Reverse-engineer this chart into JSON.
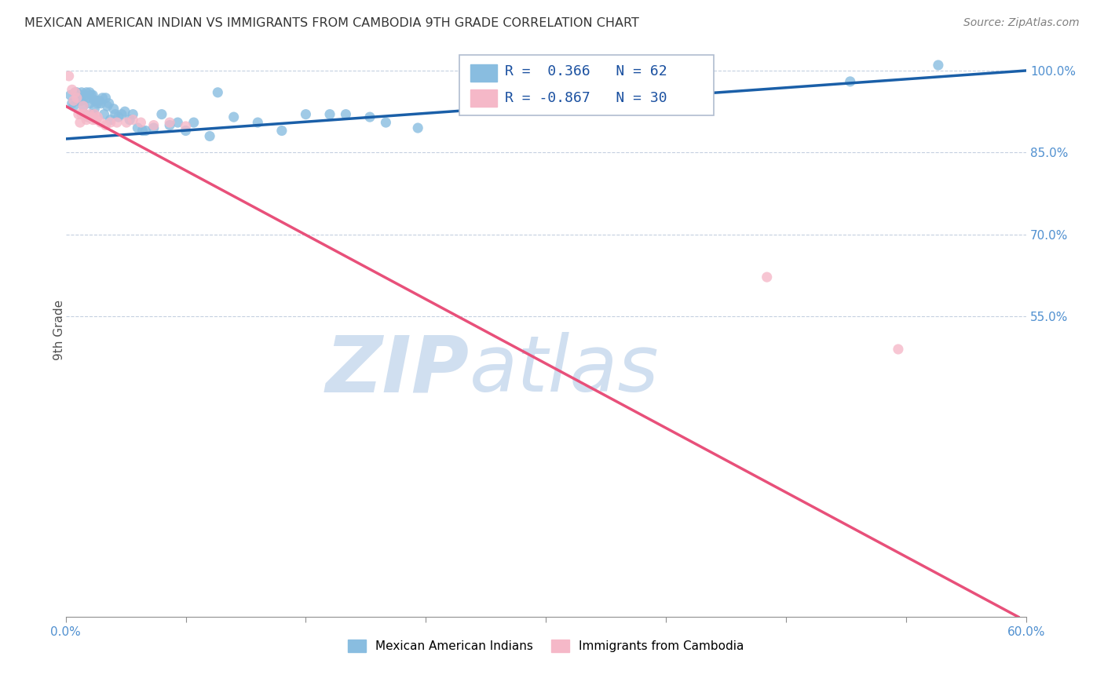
{
  "title": "MEXICAN AMERICAN INDIAN VS IMMIGRANTS FROM CAMBODIA 9TH GRADE CORRELATION CHART",
  "source": "Source: ZipAtlas.com",
  "ylabel": "9th Grade",
  "x_min": 0.0,
  "x_max": 0.6,
  "y_min": 0.0,
  "y_max": 1.05,
  "x_tick_positions": [
    0.0,
    0.075,
    0.15,
    0.225,
    0.3,
    0.375,
    0.45,
    0.525,
    0.6
  ],
  "x_tick_labels": [
    "0.0%",
    "",
    "",
    "",
    "",
    "",
    "",
    "",
    "60.0%"
  ],
  "y_ticks_right": [
    0.55,
    0.7,
    0.85,
    1.0
  ],
  "y_tick_labels_right": [
    "55.0%",
    "70.0%",
    "85.0%",
    "100.0%"
  ],
  "blue_R": 0.366,
  "blue_N": 62,
  "pink_R": -0.867,
  "pink_N": 30,
  "blue_color": "#89bde0",
  "pink_color": "#f5b8c8",
  "blue_line_color": "#1a5fa8",
  "pink_line_color": "#e8507a",
  "watermark_zip": "ZIP",
  "watermark_atlas": "atlas",
  "watermark_color": "#d0dff0",
  "blue_line_x0": 0.0,
  "blue_line_y0": 0.875,
  "blue_line_x1": 0.6,
  "blue_line_y1": 1.0,
  "pink_line_x0": 0.0,
  "pink_line_y0": 0.935,
  "pink_line_x1": 0.595,
  "pink_line_y1": 0.0,
  "blue_scatter_x": [
    0.003,
    0.004,
    0.005,
    0.006,
    0.007,
    0.008,
    0.009,
    0.01,
    0.01,
    0.011,
    0.012,
    0.012,
    0.013,
    0.014,
    0.014,
    0.015,
    0.015,
    0.016,
    0.017,
    0.017,
    0.018,
    0.018,
    0.019,
    0.02,
    0.021,
    0.022,
    0.023,
    0.024,
    0.025,
    0.026,
    0.027,
    0.028,
    0.03,
    0.031,
    0.033,
    0.035,
    0.037,
    0.04,
    0.042,
    0.045,
    0.048,
    0.05,
    0.055,
    0.06,
    0.065,
    0.07,
    0.075,
    0.08,
    0.09,
    0.095,
    0.105,
    0.12,
    0.135,
    0.15,
    0.165,
    0.175,
    0.19,
    0.2,
    0.22,
    0.39,
    0.49,
    0.545
  ],
  "blue_scatter_y": [
    0.955,
    0.94,
    0.935,
    0.96,
    0.96,
    0.945,
    0.955,
    0.96,
    0.945,
    0.935,
    0.955,
    0.92,
    0.96,
    0.95,
    0.915,
    0.96,
    0.94,
    0.955,
    0.955,
    0.92,
    0.945,
    0.93,
    0.945,
    0.94,
    0.945,
    0.94,
    0.95,
    0.92,
    0.95,
    0.935,
    0.94,
    0.91,
    0.93,
    0.92,
    0.915,
    0.92,
    0.925,
    0.91,
    0.92,
    0.895,
    0.89,
    0.89,
    0.895,
    0.92,
    0.9,
    0.905,
    0.89,
    0.905,
    0.88,
    0.96,
    0.915,
    0.905,
    0.89,
    0.92,
    0.92,
    0.92,
    0.915,
    0.905,
    0.895,
    0.96,
    0.98,
    1.01
  ],
  "pink_scatter_x": [
    0.002,
    0.004,
    0.005,
    0.006,
    0.007,
    0.008,
    0.009,
    0.01,
    0.011,
    0.012,
    0.013,
    0.014,
    0.015,
    0.016,
    0.017,
    0.018,
    0.019,
    0.02,
    0.022,
    0.025,
    0.028,
    0.032,
    0.038,
    0.042,
    0.047,
    0.055,
    0.065,
    0.075,
    0.438,
    0.52
  ],
  "pink_scatter_y": [
    0.99,
    0.965,
    0.945,
    0.96,
    0.95,
    0.92,
    0.905,
    0.92,
    0.935,
    0.92,
    0.91,
    0.915,
    0.92,
    0.915,
    0.91,
    0.92,
    0.91,
    0.915,
    0.905,
    0.9,
    0.905,
    0.905,
    0.905,
    0.91,
    0.905,
    0.9,
    0.905,
    0.898,
    0.622,
    0.49
  ]
}
